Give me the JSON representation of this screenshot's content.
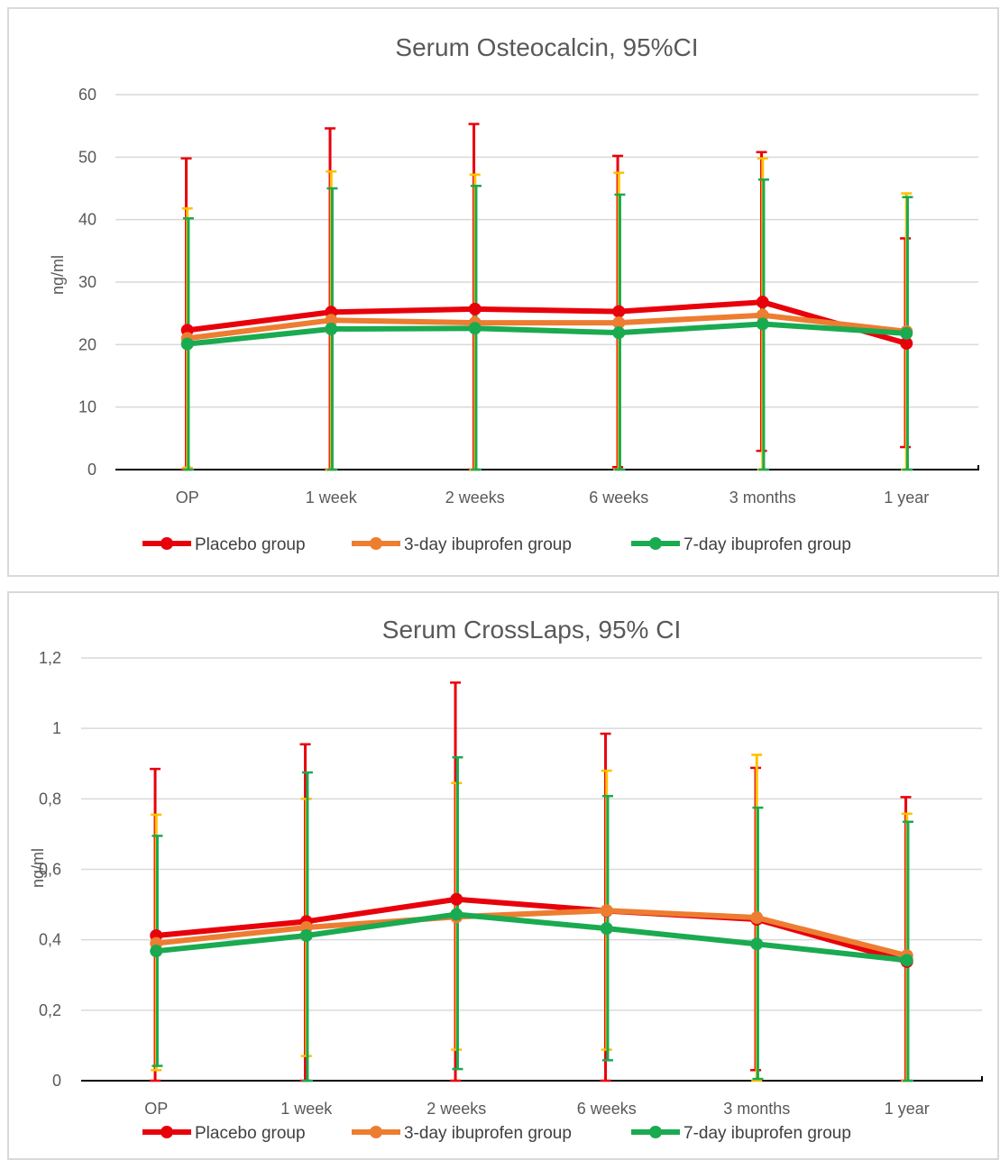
{
  "chart_data": [
    {
      "type": "line",
      "title": "Serum Osteocalcin, 95%CI",
      "ylabel": "ng/ml",
      "xlabel": "",
      "categories": [
        "OP",
        "1 week",
        "2 weeks",
        "6 weeks",
        "3 months",
        "1 year"
      ],
      "ylim": [
        0,
        60
      ],
      "ytick_values": [
        0,
        10,
        20,
        30,
        40,
        50,
        60
      ],
      "ytick_labels": [
        "0",
        "10",
        "20",
        "30",
        "40",
        "50",
        "60"
      ],
      "grid": true,
      "legend_position": "bottom",
      "series": [
        {
          "name": "Placebo group",
          "color": "#e8000b",
          "errbar_color": "#e8000b",
          "values": [
            22.3,
            25.2,
            25.7,
            25.3,
            26.8,
            20.2
          ],
          "ci_low": [
            0,
            0,
            0,
            0.4,
            3.0,
            3.6
          ],
          "ci_high": [
            49.8,
            54.6,
            55.3,
            50.2,
            50.8,
            37.0
          ]
        },
        {
          "name": "3-day ibuprofen group",
          "color": "#ed7d31",
          "errbar_color": "#ffc000",
          "values": [
            21.0,
            23.9,
            23.5,
            23.5,
            24.7,
            22.1
          ],
          "ci_low": [
            0.3,
            0,
            0,
            0,
            0,
            0
          ],
          "ci_high": [
            41.8,
            47.7,
            47.2,
            47.5,
            49.8,
            44.2
          ]
        },
        {
          "name": "7-day ibuprofen group",
          "color": "#1aaa50",
          "errbar_color": "#1aaa50",
          "values": [
            20.1,
            22.5,
            22.6,
            21.9,
            23.3,
            21.8
          ],
          "ci_low": [
            0,
            0,
            0,
            0,
            0,
            0
          ],
          "ci_high": [
            40.2,
            45.0,
            45.4,
            44.0,
            46.4,
            43.6
          ]
        }
      ]
    },
    {
      "type": "line",
      "title": "Serum CrossLaps, 95% CI",
      "ylabel": "ng/ml",
      "xlabel": "",
      "categories": [
        "OP",
        "1 week",
        "2 weeks",
        "6 weeks",
        "3 months",
        "1 year"
      ],
      "ylim": [
        0,
        1.2
      ],
      "ytick_values": [
        0,
        0.2,
        0.4,
        0.6,
        0.8,
        1.0,
        1.2
      ],
      "ytick_labels": [
        "0",
        "0,2",
        "0,4",
        "0,6",
        "0,8",
        "1",
        "1,2"
      ],
      "grid": true,
      "legend_position": "bottom",
      "series": [
        {
          "name": "Placebo group",
          "color": "#e8000b",
          "errbar_color": "#e8000b",
          "values": [
            0.412,
            0.452,
            0.515,
            0.482,
            0.458,
            0.338
          ],
          "ci_low": [
            0,
            0,
            0,
            0,
            0.03,
            0
          ],
          "ci_high": [
            0.885,
            0.955,
            1.13,
            0.985,
            0.888,
            0.805
          ]
        },
        {
          "name": "3-day ibuprofen group",
          "color": "#ed7d31",
          "errbar_color": "#ffc000",
          "values": [
            0.39,
            0.435,
            0.465,
            0.483,
            0.463,
            0.355
          ],
          "ci_low": [
            0.03,
            0.07,
            0.088,
            0.088,
            0,
            0
          ],
          "ci_high": [
            0.755,
            0.8,
            0.845,
            0.88,
            0.925,
            0.758
          ]
        },
        {
          "name": "7-day ibuprofen group",
          "color": "#1aaa50",
          "errbar_color": "#1aaa50",
          "values": [
            0.368,
            0.412,
            0.472,
            0.432,
            0.388,
            0.342
          ],
          "ci_low": [
            0.042,
            0,
            0.033,
            0.058,
            0.005,
            0
          ],
          "ci_high": [
            0.695,
            0.875,
            0.918,
            0.808,
            0.775,
            0.735
          ]
        }
      ]
    }
  ]
}
